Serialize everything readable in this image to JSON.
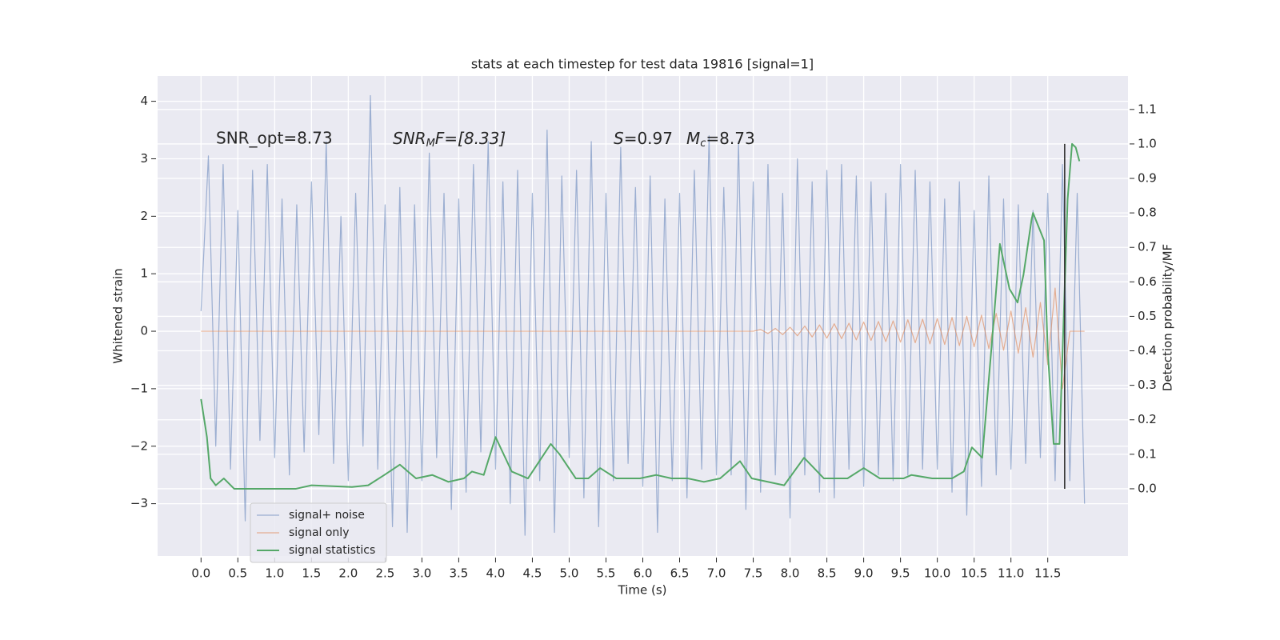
{
  "chart_data": {
    "type": "line",
    "title": "stats at each timestep for test data 19816 [signal=1]",
    "xlabel": "Time (s)",
    "ylabel": "Whitened strain",
    "y2label": "Detection probability/MF",
    "annotations": [
      "SNR_opt=8.73",
      {
        "main": "SNR",
        "sub": "M",
        "rest": "F=[8.33]"
      },
      {
        "main": "S",
        "rest": "=0.97"
      },
      {
        "main": "M",
        "sub": "c",
        "rest": "=8.73"
      }
    ],
    "xlim": [
      -0.59,
      12.59
    ],
    "ylim": [
      -3.91,
      4.44
    ],
    "y2lim": [
      -0.195,
      1.197
    ],
    "xticks": [
      {
        "value": 0,
        "label": "0.0"
      },
      0.5,
      {
        "value": 1,
        "label": "1.0"
      },
      1.5,
      {
        "value": 2,
        "label": "2.0"
      },
      2.5,
      {
        "value": 3,
        "label": "3.0"
      },
      3.5,
      {
        "value": 4,
        "label": "4.0"
      },
      4.5,
      {
        "value": 5,
        "label": "5.0"
      },
      5.5,
      {
        "value": 6,
        "label": "6.0"
      },
      6.5,
      {
        "value": 7,
        "label": "7.0"
      },
      7.5,
      {
        "value": 8,
        "label": "8.0"
      },
      8.5,
      {
        "value": 9,
        "label": "9.0"
      },
      9.5,
      {
        "value": 10,
        "label": "10.0"
      },
      10.5,
      {
        "value": 11,
        "label": "11.0"
      },
      11.5
    ],
    "yticks": [
      {
        "value": -3,
        "label": "−3"
      },
      {
        "value": -2,
        "label": "−2"
      },
      {
        "value": -1,
        "label": "−1"
      },
      0,
      1,
      2,
      3,
      4
    ],
    "y2ticks": [
      {
        "value": 0,
        "label": "0.0"
      },
      0.1,
      0.2,
      0.3,
      0.4,
      0.5,
      0.6,
      0.7,
      0.8,
      0.9,
      {
        "value": 1,
        "label": "1.0"
      },
      1.1
    ],
    "grid": true,
    "legend": "lower left",
    "x": [
      0,
      0.1,
      0.2,
      0.3,
      0.4,
      0.5,
      0.6,
      0.7,
      0.8,
      0.9,
      1,
      1.1,
      1.2,
      1.3,
      1.4,
      1.5,
      1.6,
      1.7,
      1.8,
      1.9,
      2,
      2.1,
      2.2,
      2.3,
      2.4,
      2.5,
      2.6,
      2.7,
      2.8,
      2.9,
      3,
      3.1,
      3.2,
      3.3,
      3.4,
      3.5,
      3.6,
      3.7,
      3.8,
      3.9,
      4,
      4.1,
      4.2,
      4.3,
      4.4,
      4.5,
      4.6,
      4.7,
      4.8,
      4.9,
      5,
      5.1,
      5.2,
      5.3,
      5.4,
      5.5,
      5.6,
      5.7,
      5.8,
      5.9,
      6,
      6.1,
      6.2,
      6.3,
      6.4,
      6.5,
      6.6,
      6.7,
      6.8,
      6.9,
      7,
      7.1,
      7.2,
      7.3,
      7.4,
      7.5,
      7.6,
      7.7,
      7.8,
      7.9,
      8,
      8.1,
      8.2,
      8.3,
      8.4,
      8.5,
      8.6,
      8.7,
      8.8,
      8.9,
      9,
      9.1,
      9.2,
      9.3,
      9.4,
      9.5,
      9.6,
      9.7,
      9.8,
      9.9,
      10,
      10.1,
      10.2,
      10.3,
      10.4,
      10.5,
      10.6,
      10.7,
      10.8,
      10.9,
      11,
      11.1,
      11.2,
      11.3,
      11.4,
      11.5,
      11.6,
      11.7,
      11.8,
      11.9,
      12
    ],
    "series": [
      {
        "name": "signal+ noise",
        "color": "#4c72b0",
        "values": [
          0.35,
          3.05,
          -2.0,
          2.9,
          -2.4,
          2.1,
          -3.3,
          2.8,
          -1.9,
          2.9,
          -2.2,
          2.3,
          -2.5,
          2.2,
          -2.1,
          2.6,
          -1.8,
          3.3,
          -2.3,
          2.0,
          -2.6,
          2.4,
          -2.0,
          4.1,
          -2.4,
          2.2,
          -3.4,
          2.5,
          -3.5,
          2.2,
          -2.6,
          3.1,
          -2.2,
          2.4,
          -3.1,
          2.3,
          -2.8,
          2.9,
          -2.1,
          3.3,
          -2.4,
          2.6,
          -3.0,
          2.8,
          -3.55,
          2.4,
          -2.6,
          3.5,
          -3.5,
          2.7,
          -2.2,
          2.8,
          -2.9,
          3.3,
          -3.4,
          2.4,
          -2.6,
          3.2,
          -2.3,
          2.5,
          -2.7,
          2.7,
          -3.5,
          2.3,
          -2.6,
          2.4,
          -2.9,
          2.8,
          -2.4,
          3.4,
          -2.5,
          2.5,
          -2.5,
          3.3,
          -3.1,
          2.6,
          -2.8,
          2.9,
          -2.5,
          2.4,
          -3.25,
          3.0,
          -2.5,
          2.6,
          -2.8,
          2.8,
          -2.9,
          2.9,
          -2.4,
          2.7,
          -2.7,
          2.6,
          -2.5,
          2.4,
          -2.6,
          2.9,
          -2.5,
          2.8,
          -2.4,
          2.6,
          -2.4,
          2.3,
          -2.8,
          2.6,
          -3.2,
          2.1,
          -2.7,
          2.7,
          -2.5,
          2.3,
          -2.4,
          2.2,
          -2.3,
          2.1,
          -2.2,
          2.4,
          -2.6,
          2.9,
          -2.6,
          2.4,
          -3.0
        ]
      },
      {
        "name": "signal only",
        "color": "#dd8452",
        "values": [
          0,
          0,
          0,
          0,
          0,
          0,
          0,
          0,
          0,
          0,
          0,
          0,
          0,
          0,
          0,
          0,
          0,
          0,
          0,
          0,
          0,
          0,
          0,
          0,
          0,
          0,
          0,
          0,
          0,
          0,
          0,
          0,
          0,
          0,
          0,
          0,
          0,
          0,
          0,
          0,
          0,
          0,
          0,
          0,
          0,
          0,
          0,
          0,
          0,
          0,
          0,
          0,
          0,
          0,
          0,
          0,
          0,
          0,
          0,
          0,
          0,
          0,
          0,
          0,
          0,
          0,
          0,
          0,
          0,
          0,
          0,
          0,
          0,
          0,
          0,
          0,
          0.03,
          -0.04,
          0.05,
          -0.06,
          0.07,
          -0.08,
          0.09,
          -0.1,
          0.11,
          -0.12,
          0.13,
          -0.13,
          0.14,
          -0.15,
          0.16,
          -0.16,
          0.17,
          -0.18,
          0.18,
          -0.19,
          0.2,
          -0.2,
          0.21,
          -0.22,
          0.22,
          -0.23,
          0.24,
          -0.25,
          0.26,
          -0.27,
          0.28,
          -0.3,
          0.31,
          -0.33,
          0.35,
          -0.38,
          0.41,
          -0.45,
          0.5,
          -0.58,
          0.75,
          -1.0,
          0,
          0,
          0
        ]
      },
      {
        "name": "signal statistics",
        "color": "#55a868",
        "axis": "y2",
        "x": [
          0,
          0.08,
          0.13,
          0.2,
          0.31,
          0.45,
          0.75,
          1.29,
          1.5,
          2.05,
          2.27,
          2.49,
          2.7,
          2.92,
          3.14,
          3.36,
          3.57,
          3.68,
          3.84,
          4.0,
          4.22,
          4.44,
          4.75,
          4.87,
          5.09,
          5.26,
          5.42,
          5.64,
          5.96,
          6.18,
          6.39,
          6.61,
          6.83,
          7.05,
          7.32,
          7.48,
          7.92,
          8.19,
          8.46,
          8.78,
          9.0,
          9.22,
          9.54,
          9.65,
          9.93,
          10.2,
          10.36,
          10.47,
          10.61,
          10.74,
          10.85,
          10.98,
          11.09,
          11.17,
          11.28,
          11.3,
          11.45,
          11.5,
          11.58,
          11.66,
          11.77,
          11.83,
          11.88,
          11.93
        ],
        "values": [
          0.26,
          0.15,
          0.03,
          0.01,
          0.03,
          0.0,
          0.0,
          0.0,
          0.01,
          0.005,
          0.01,
          0.04,
          0.07,
          0.03,
          0.04,
          0.02,
          0.03,
          0.05,
          0.04,
          0.15,
          0.05,
          0.03,
          0.13,
          0.1,
          0.03,
          0.03,
          0.06,
          0.03,
          0.03,
          0.04,
          0.03,
          0.03,
          0.02,
          0.03,
          0.08,
          0.03,
          0.01,
          0.09,
          0.03,
          0.03,
          0.06,
          0.03,
          0.03,
          0.04,
          0.03,
          0.03,
          0.05,
          0.12,
          0.09,
          0.42,
          0.71,
          0.58,
          0.54,
          0.62,
          0.78,
          0.8,
          0.72,
          0.4,
          0.13,
          0.13,
          0.84,
          1.0,
          0.99,
          0.95
        ]
      }
    ],
    "vline": {
      "x": 11.73,
      "y2": [
        0,
        1
      ],
      "color": "#333333"
    }
  }
}
